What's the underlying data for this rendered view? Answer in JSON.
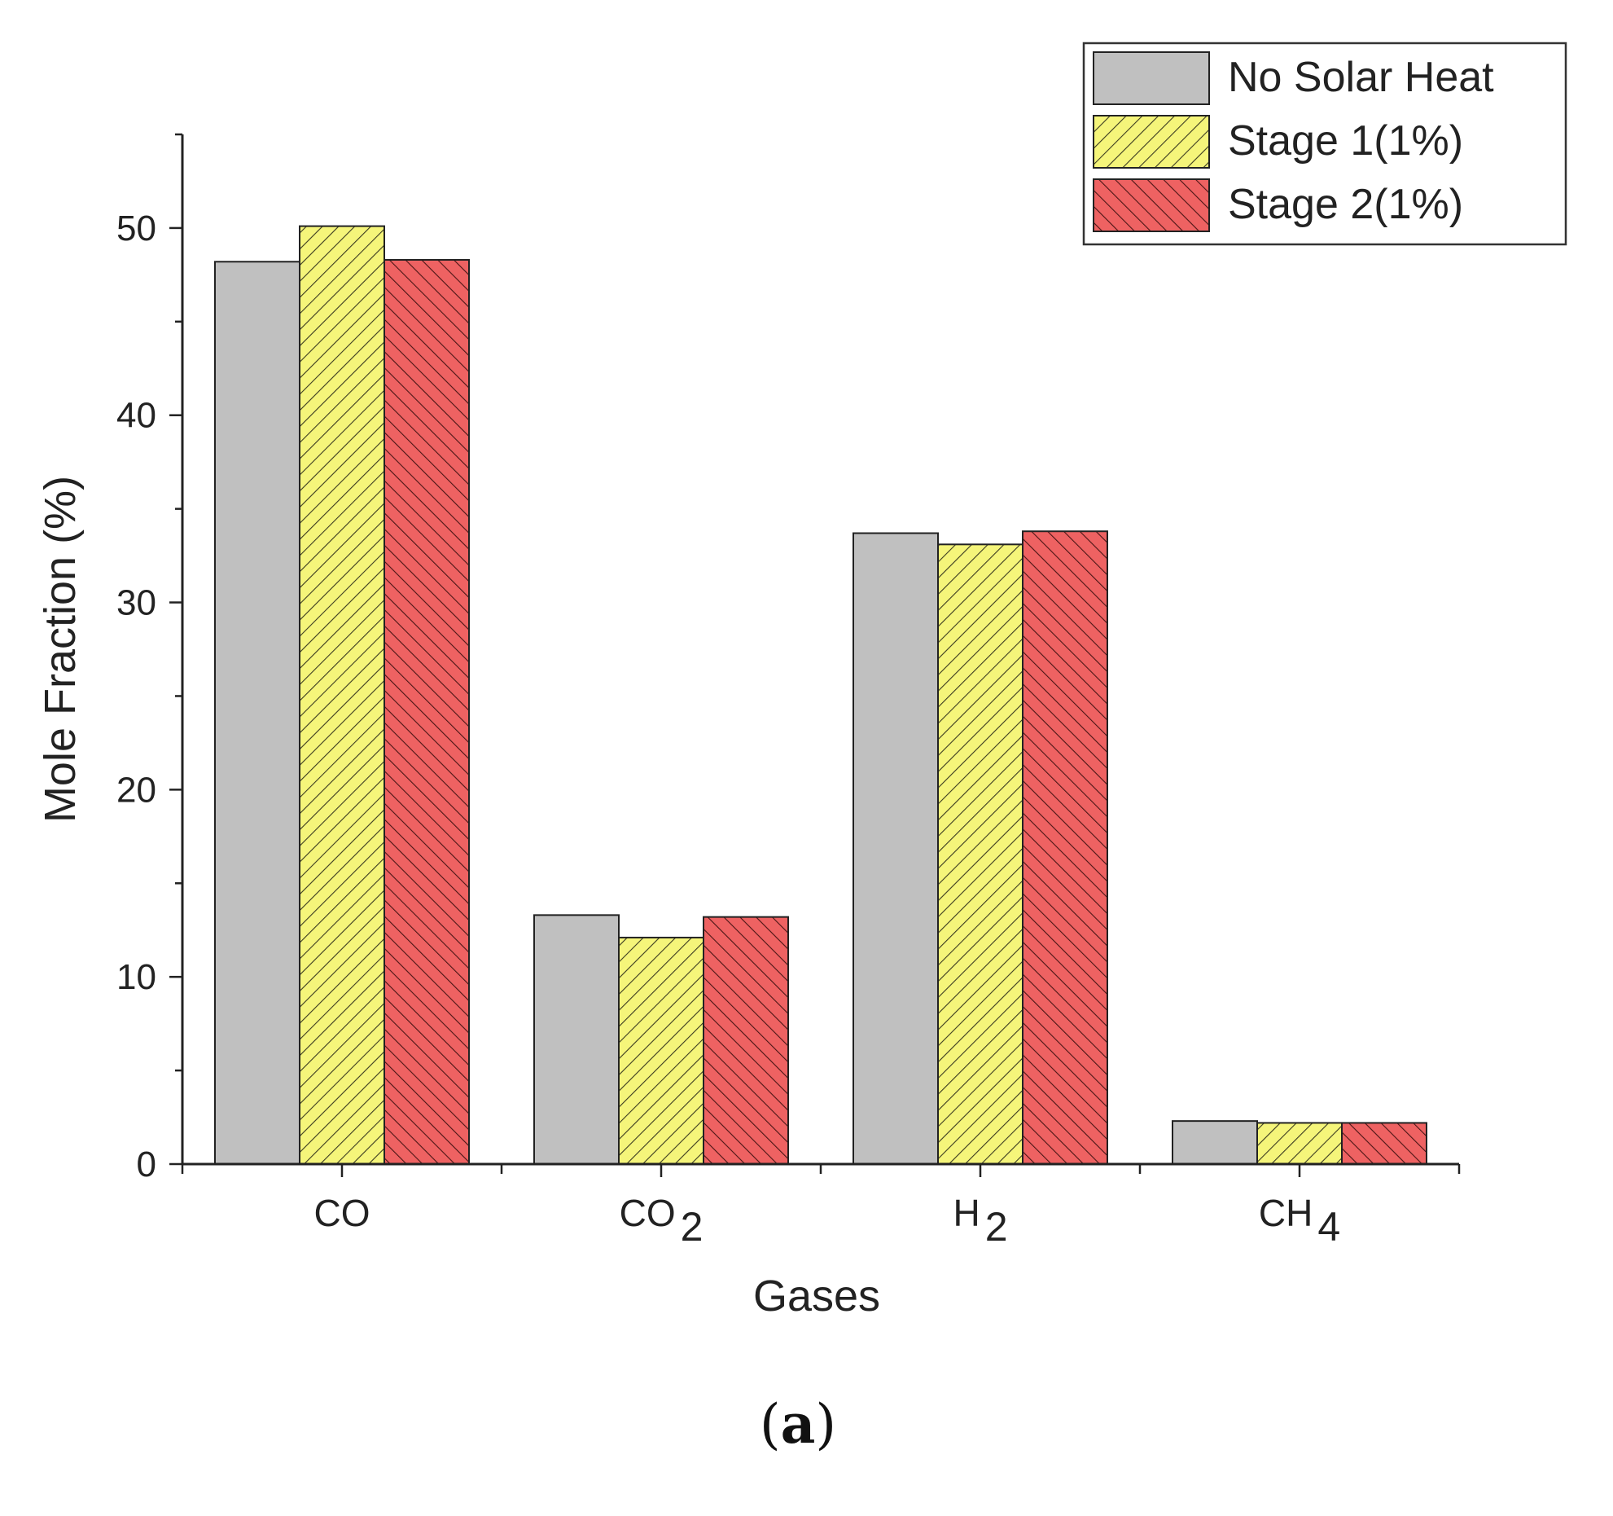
{
  "chart_data": {
    "type": "bar",
    "title": "",
    "xlabel": "Gases",
    "ylabel": "Mole Fraction (%)",
    "ylim": [
      0,
      55
    ],
    "yticks": [
      0,
      10,
      20,
      30,
      40,
      50
    ],
    "categories": [
      {
        "base": "CO",
        "sub": ""
      },
      {
        "base": "CO",
        "sub": "2"
      },
      {
        "base": "H",
        "sub": "2"
      },
      {
        "base": "CH",
        "sub": "4"
      }
    ],
    "series": [
      {
        "name": "No Solar Heat",
        "values": [
          48.2,
          13.3,
          33.7,
          2.3
        ],
        "color": "#c0c0c0",
        "pattern": "none"
      },
      {
        "name": "Stage 1(1%)",
        "values": [
          50.1,
          12.1,
          33.1,
          2.2
        ],
        "color": "#f5f57a",
        "pattern": "forward-hatch"
      },
      {
        "name": "Stage 2(1%)",
        "values": [
          48.3,
          13.2,
          33.8,
          2.2
        ],
        "color": "#ee6262",
        "pattern": "back-hatch"
      }
    ],
    "legend_position": "top-right",
    "caption": {
      "prefix": "(",
      "letter": "a",
      "suffix": ")"
    }
  }
}
